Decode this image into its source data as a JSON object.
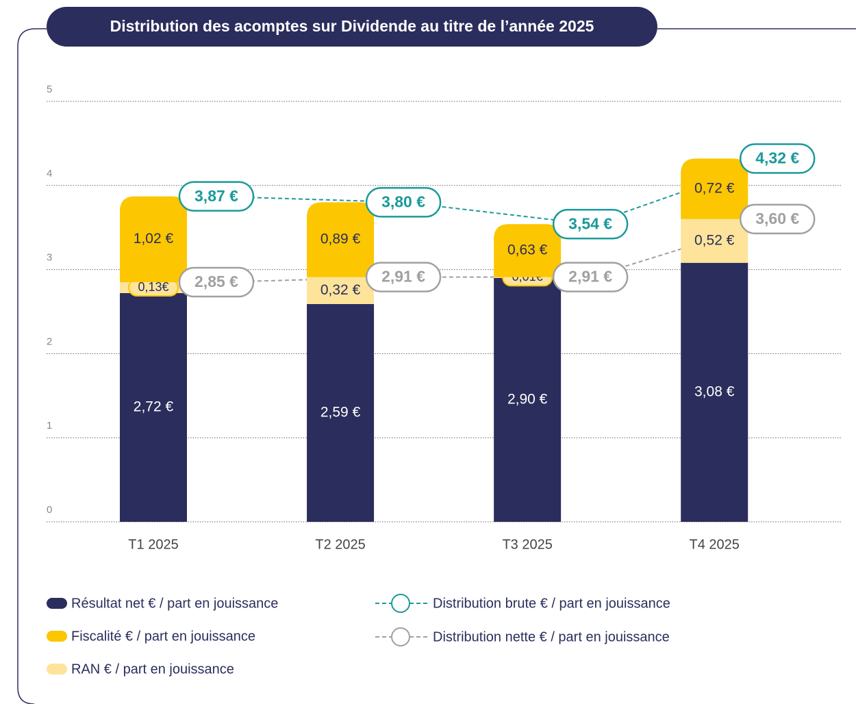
{
  "chart_data": {
    "type": "bar",
    "stacked": true,
    "title": "Distribution des acomptes sur Dividende au titre de l’année 2025",
    "categories": [
      "T1 2025",
      "T2 2025",
      "T3 2025",
      "T4 2025"
    ],
    "ylim": [
      0,
      5
    ],
    "yticks": [
      0,
      1,
      2,
      3,
      4,
      5
    ],
    "grid": true,
    "series": [
      {
        "name": "Résultat net € / part en jouissance",
        "type": "bar",
        "color": "#2b2d5c",
        "values": [
          2.72,
          2.59,
          2.9,
          3.08
        ],
        "value_labels": [
          "2,72 €",
          "2,59 €",
          "2,90 €",
          "3,08 €"
        ]
      },
      {
        "name": "RAN € / part en jouissance",
        "type": "bar",
        "color": "#fde49a",
        "values": [
          0.13,
          0.32,
          0.01,
          0.52
        ],
        "value_labels": [
          "0,13€",
          "0,32 €",
          "0,01€",
          "0,52 €"
        ]
      },
      {
        "name": "Fiscalité € / part en jouissance",
        "type": "bar",
        "color": "#fcc600",
        "values": [
          1.02,
          0.89,
          0.63,
          0.72
        ],
        "value_labels": [
          "1,02 €",
          "0,89 €",
          "0,63 €",
          "0,72 €"
        ]
      },
      {
        "name": "Distribution brute € / part en jouissance",
        "type": "line",
        "color": "#1a9a9a",
        "values": [
          3.87,
          3.8,
          3.54,
          4.32
        ],
        "value_labels": [
          "3,87 €",
          "3,80 €",
          "3,54 €",
          "4,32 €"
        ]
      },
      {
        "name": "Distribution nette € / part en jouissance",
        "type": "line",
        "color": "#a0a0a0",
        "values": [
          2.85,
          2.91,
          2.91,
          3.6
        ],
        "value_labels": [
          "2,85 €",
          "2,91 €",
          "2,91 €",
          "3,60 €"
        ]
      }
    ],
    "legend_order": [
      0,
      2,
      1,
      3,
      4
    ]
  }
}
